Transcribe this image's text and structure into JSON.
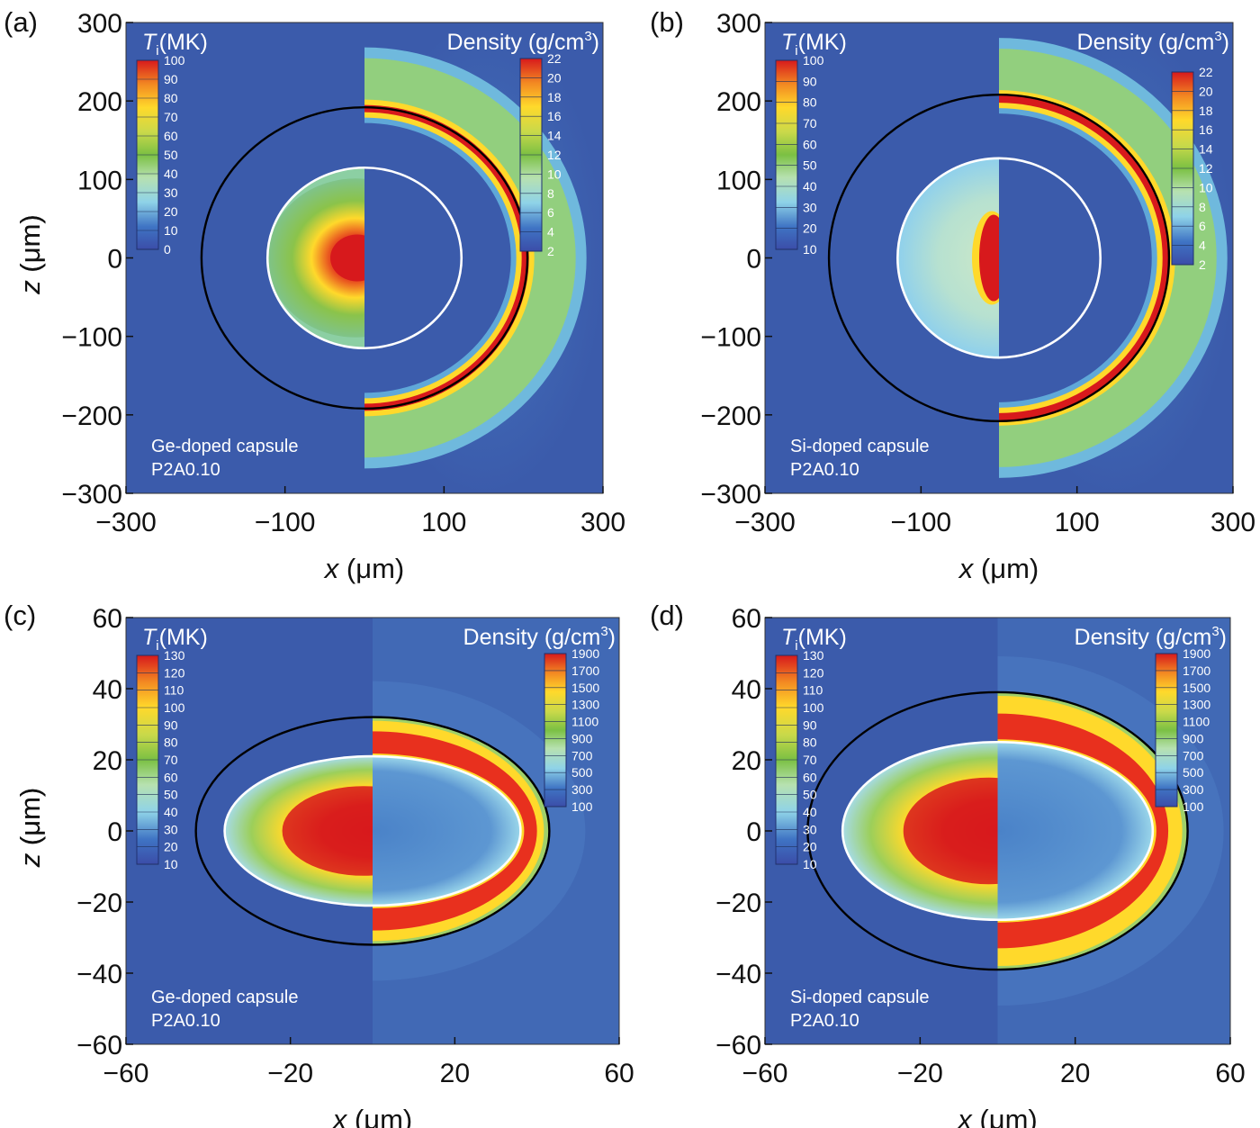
{
  "chart_data": [
    {
      "type": "heatmap",
      "panel_label": "(a)",
      "title_left": "T",
      "title_left_sub": "i",
      "title_left_unit": "(MK)",
      "title_right": "Density (g/cm",
      "title_right_sup": "3",
      "title_right_close": ")",
      "xlabel": "x",
      "ylabel": "z",
      "unit": "(μm)",
      "xlim": [
        -300,
        300
      ],
      "ylim": [
        -300,
        300
      ],
      "xticks": [
        "−300",
        "−100",
        "100",
        "300"
      ],
      "xtick_values": [
        -300,
        -100,
        100,
        300
      ],
      "yticks": [
        "300",
        "200",
        "100",
        "0",
        "−100",
        "−200",
        "−300"
      ],
      "ytick_values": [
        300,
        200,
        100,
        0,
        -100,
        -200,
        -300
      ],
      "ti_scale": [
        "100",
        "90",
        "80",
        "70",
        "60",
        "50",
        "40",
        "30",
        "20",
        "10",
        "0"
      ],
      "density_scale": [
        "22",
        "20",
        "18",
        "16",
        "14",
        "12",
        "10",
        "8",
        "6",
        "4",
        "2"
      ],
      "caption_line1": "Ge-doped capsule",
      "caption_line2": "P2A0.10",
      "shell_boundary_radius": {
        "x": 205,
        "z": 192
      },
      "hotspot_boundary_radius": {
        "x": 122,
        "z": 115
      },
      "dense_shell_radius": {
        "x": 200,
        "z": 188
      },
      "hotspot_peak_Ti_MK": 100
    },
    {
      "type": "heatmap",
      "panel_label": "(b)",
      "title_left": "T",
      "title_left_sub": "i",
      "title_left_unit": "(MK)",
      "title_right": "Density (g/cm",
      "title_right_sup": "3",
      "title_right_close": ")",
      "xlabel": "x",
      "ylabel": "z",
      "unit": "(μm)",
      "xlim": [
        -300,
        300
      ],
      "ylim": [
        -300,
        300
      ],
      "xticks": [
        "−300",
        "−100",
        "100",
        "300"
      ],
      "xtick_values": [
        -300,
        -100,
        100,
        300
      ],
      "yticks": [
        "300",
        "200",
        "100",
        "0",
        "−100",
        "−200",
        "−300"
      ],
      "ytick_values": [
        300,
        200,
        100,
        0,
        -100,
        -200,
        -300
      ],
      "ti_scale": [
        "100",
        "90",
        "80",
        "70",
        "60",
        "50",
        "40",
        "30",
        "20",
        "10"
      ],
      "density_scale": [
        "22",
        "20",
        "18",
        "16",
        "14",
        "12",
        "10",
        "8",
        "6",
        "4",
        "2"
      ],
      "caption_line1": "Si-doped capsule",
      "caption_line2": "P2A0.10",
      "shell_boundary_radius": {
        "x": 218,
        "z": 208
      },
      "hotspot_boundary_radius": {
        "x": 130,
        "z": 127
      },
      "dense_shell_radius": {
        "x": 212,
        "z": 200
      },
      "hotspot_peak_Ti_MK": 100
    },
    {
      "type": "heatmap",
      "panel_label": "(c)",
      "title_left": "T",
      "title_left_sub": "i",
      "title_left_unit": "(MK)",
      "title_right": "Density (g/cm",
      "title_right_sup": "3",
      "title_right_close": ")",
      "xlabel": "x",
      "ylabel": "z",
      "unit": "(μm)",
      "xlim": [
        -60,
        60
      ],
      "ylim": [
        -60,
        60
      ],
      "xticks": [
        "−60",
        "−20",
        "20",
        "60"
      ],
      "xtick_values": [
        -60,
        -20,
        20,
        60
      ],
      "yticks": [
        "60",
        "40",
        "20",
        "0",
        "−20",
        "−40",
        "−60"
      ],
      "ytick_values": [
        60,
        40,
        20,
        0,
        -20,
        -40,
        -60
      ],
      "ti_scale": [
        "130",
        "120",
        "110",
        "100",
        "90",
        "80",
        "70",
        "60",
        "50",
        "40",
        "30",
        "20",
        "10"
      ],
      "density_scale": [
        "1900",
        "1700",
        "1500",
        "1300",
        "1100",
        "900",
        "700",
        "500",
        "300",
        "100"
      ],
      "caption_line1": "Ge-doped capsule",
      "caption_line2": "P2A0.10",
      "shell_boundary_radius": {
        "x": 43,
        "z": 32
      },
      "hotspot_boundary_radius": {
        "x": 36,
        "z": 21
      },
      "dense_shell_radius": {
        "x": 40,
        "z": 28
      },
      "hotspot_peak_Ti_MK": 130
    },
    {
      "type": "heatmap",
      "panel_label": "(d)",
      "title_left": "T",
      "title_left_sub": "i",
      "title_left_unit": "(MK)",
      "title_right": "Density (g/cm",
      "title_right_sup": "3",
      "title_right_close": ")",
      "xlabel": "x",
      "ylabel": "z",
      "unit": "(μm)",
      "xlim": [
        -60,
        60
      ],
      "ylim": [
        -60,
        60
      ],
      "xticks": [
        "−60",
        "−20",
        "20",
        "60"
      ],
      "xtick_values": [
        -60,
        -20,
        20,
        60
      ],
      "yticks": [
        "60",
        "40",
        "20",
        "0",
        "−20",
        "−40",
        "−60"
      ],
      "ytick_values": [
        60,
        40,
        20,
        0,
        -20,
        -40,
        -60
      ],
      "ti_scale": [
        "130",
        "120",
        "110",
        "100",
        "90",
        "80",
        "70",
        "60",
        "50",
        "40",
        "30",
        "20",
        "10"
      ],
      "density_scale": [
        "1900",
        "1700",
        "1500",
        "1300",
        "1100",
        "900",
        "700",
        "500",
        "300",
        "100"
      ],
      "caption_line1": "Si-doped capsule",
      "caption_line2": "P2A0.10",
      "shell_boundary_radius": {
        "x": 49,
        "z": 39
      },
      "hotspot_boundary_radius": {
        "x": 40,
        "z": 25
      },
      "dense_shell_radius": {
        "x": 44,
        "z": 33
      },
      "hotspot_peak_Ti_MK": 130
    }
  ],
  "colors": {
    "background_blue": "#3b5bab",
    "hot_red": "#d7191c",
    "boundary_white": "#ffffff",
    "boundary_black": "#000000"
  }
}
